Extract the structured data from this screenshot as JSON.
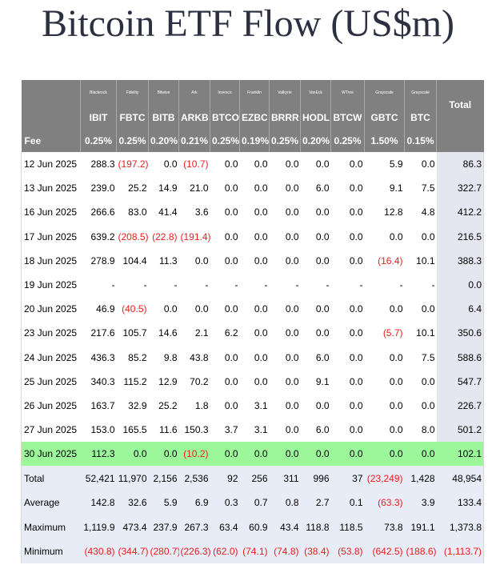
{
  "title": "Bitcoin ETF Flow (US$m)",
  "header": {
    "issuers": [
      "Blackrock",
      "Fidelity",
      "Bitwise",
      "Ark",
      "Invesco",
      "Franklin",
      "Valkyrie",
      "VanEck",
      "WTree",
      "Grayscale",
      "Grayscale"
    ],
    "tickers": [
      "IBIT",
      "FBTC",
      "BITB",
      "ARKB",
      "BTCO",
      "EZBC",
      "BRRR",
      "HODL",
      "BTCW",
      "GBTC",
      "BTC"
    ],
    "total_label": "Total",
    "fee_label": "Fee",
    "fees": [
      "0.25%",
      "0.25%",
      "0.20%",
      "0.21%",
      "0.25%",
      "0.19%",
      "0.25%",
      "0.20%",
      "0.25%",
      "1.50%",
      "0.15%"
    ]
  },
  "rows": [
    {
      "date": "12 Jun 2025",
      "values": [
        "288.3",
        "(197.2)",
        "0.0",
        "(10.7)",
        "0.0",
        "0.0",
        "0.0",
        "0.0",
        "0.0",
        "5.9",
        "0.0"
      ],
      "total": "86.3"
    },
    {
      "date": "13 Jun 2025",
      "values": [
        "239.0",
        "25.2",
        "14.9",
        "21.0",
        "0.0",
        "0.0",
        "0.0",
        "6.0",
        "0.0",
        "9.1",
        "7.5"
      ],
      "total": "322.7"
    },
    {
      "date": "16 Jun 2025",
      "values": [
        "266.6",
        "83.0",
        "41.4",
        "3.6",
        "0.0",
        "0.0",
        "0.0",
        "0.0",
        "0.0",
        "12.8",
        "4.8"
      ],
      "total": "412.2"
    },
    {
      "date": "17 Jun 2025",
      "values": [
        "639.2",
        "(208.5)",
        "(22.8)",
        "(191.4)",
        "0.0",
        "0.0",
        "0.0",
        "0.0",
        "0.0",
        "0.0",
        "0.0"
      ],
      "total": "216.5"
    },
    {
      "date": "18 Jun 2025",
      "values": [
        "278.9",
        "104.4",
        "11.3",
        "0.0",
        "0.0",
        "0.0",
        "0.0",
        "0.0",
        "0.0",
        "(16.4)",
        "10.1"
      ],
      "total": "388.3"
    },
    {
      "date": "19 Jun 2025",
      "values": [
        "-",
        "-",
        "-",
        "-",
        "-",
        "-",
        "-",
        "-",
        "-",
        "-",
        "-"
      ],
      "total": "0.0"
    },
    {
      "date": "20 Jun 2025",
      "values": [
        "46.9",
        "(40.5)",
        "0.0",
        "0.0",
        "0.0",
        "0.0",
        "0.0",
        "0.0",
        "0.0",
        "0.0",
        "0.0"
      ],
      "total": "6.4"
    },
    {
      "date": "23 Jun 2025",
      "values": [
        "217.6",
        "105.7",
        "14.6",
        "2.1",
        "6.2",
        "0.0",
        "0.0",
        "0.0",
        "0.0",
        "(5.7)",
        "10.1"
      ],
      "total": "350.6"
    },
    {
      "date": "24 Jun 2025",
      "values": [
        "436.3",
        "85.2",
        "9.8",
        "43.8",
        "0.0",
        "0.0",
        "0.0",
        "6.0",
        "0.0",
        "0.0",
        "7.5"
      ],
      "total": "588.6"
    },
    {
      "date": "25 Jun 2025",
      "values": [
        "340.3",
        "115.2",
        "12.9",
        "70.2",
        "0.0",
        "0.0",
        "0.0",
        "9.1",
        "0.0",
        "0.0",
        "0.0"
      ],
      "total": "547.7"
    },
    {
      "date": "26 Jun 2025",
      "values": [
        "163.7",
        "32.9",
        "25.2",
        "1.8",
        "0.0",
        "3.1",
        "0.0",
        "0.0",
        "0.0",
        "0.0",
        "0.0"
      ],
      "total": "226.7"
    },
    {
      "date": "27 Jun 2025",
      "values": [
        "153.0",
        "165.5",
        "11.6",
        "150.3",
        "3.7",
        "3.1",
        "0.0",
        "6.0",
        "0.0",
        "0.0",
        "8.0"
      ],
      "total": "501.2"
    },
    {
      "date": "30 Jun 2025",
      "values": [
        "112.3",
        "0.0",
        "0.0",
        "(10.2)",
        "0.0",
        "0.0",
        "0.0",
        "0.0",
        "0.0",
        "0.0",
        "0.0"
      ],
      "total": "102.1",
      "highlight": true
    }
  ],
  "summary": [
    {
      "label": "Total",
      "values": [
        "52,421",
        "11,970",
        "2,156",
        "2,536",
        "92",
        "256",
        "311",
        "996",
        "37",
        "(23,249)",
        "1,428"
      ],
      "total": "48,954"
    },
    {
      "label": "Average",
      "values": [
        "142.8",
        "32.6",
        "5.9",
        "6.9",
        "0.3",
        "0.7",
        "0.8",
        "2.7",
        "0.1",
        "(63.3)",
        "3.9"
      ],
      "total": "133.4"
    },
    {
      "label": "Maximum",
      "values": [
        "1,119.9",
        "473.4",
        "237.9",
        "267.3",
        "63.4",
        "60.9",
        "43.4",
        "118.8",
        "118.5",
        "73.8",
        "191.1"
      ],
      "total": "1,373.8"
    },
    {
      "label": "Minimum",
      "values": [
        "(430.8)",
        "(344.7)",
        "(280.7)",
        "(226.3)",
        "(62.0)",
        "(74.1)",
        "(74.8)",
        "(38.4)",
        "(53.8)",
        "(642.5)",
        "(188.6)"
      ],
      "total": "(1,113.7)"
    }
  ],
  "colors": {
    "negative": "#ee1c1c",
    "highlight_row": "#9cf79a",
    "header_bg": "#808080",
    "summary_bg": "#e8ecf6"
  }
}
